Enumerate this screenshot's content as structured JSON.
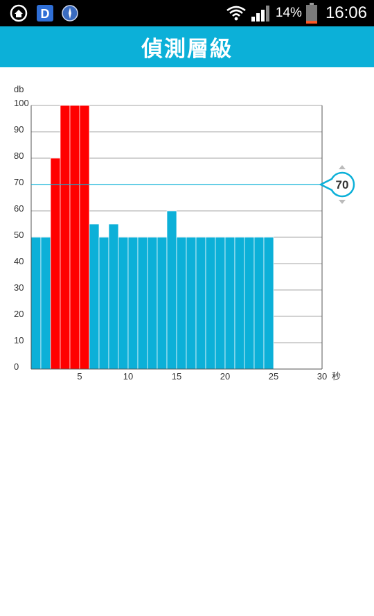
{
  "status_bar": {
    "battery_percent": "14%",
    "time": "16:06",
    "battery_level": 0.14,
    "icons": [
      "home-icon",
      "d-app-icon",
      "compass-icon",
      "wifi-icon",
      "signal-icon",
      "battery-icon"
    ]
  },
  "header": {
    "title": "偵測層級"
  },
  "chart_data": {
    "type": "bar",
    "ylabel": "db",
    "xlabel": "秒",
    "ylim": [
      0,
      100
    ],
    "xlim": [
      0,
      30
    ],
    "yticks": [
      "0",
      "10",
      "20",
      "30",
      "40",
      "50",
      "60",
      "70",
      "80",
      "90",
      "100"
    ],
    "xticks": [
      "5",
      "10",
      "15",
      "20",
      "25",
      "30"
    ],
    "grid": true,
    "threshold": 70,
    "threshold_label": "70",
    "colors": {
      "normal": "#0cb0d8",
      "over": "#ff0000",
      "threshold": "#0cb0d8",
      "grid": "#888888"
    },
    "values": [
      50,
      50,
      80,
      100,
      100,
      100,
      55,
      50,
      55,
      50,
      50,
      50,
      50,
      50,
      60,
      50,
      50,
      50,
      50,
      50,
      50,
      50,
      50,
      50,
      50
    ]
  }
}
